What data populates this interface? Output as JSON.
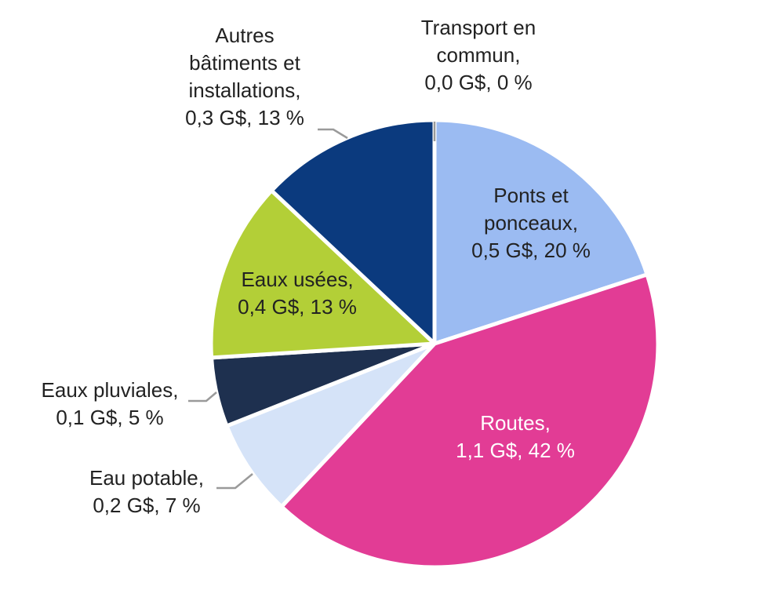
{
  "chart_data": {
    "type": "pie",
    "title": "",
    "start_angle_deg": 0,
    "direction": "clockwise",
    "slices": [
      {
        "name": "Transport en commun",
        "value": 0.0,
        "percent": 0,
        "color": "#9BBBF2",
        "label_lines": [
          "Transport en",
          "commun,",
          "0,0 G$, 0 %"
        ],
        "label_color": "#222222"
      },
      {
        "name": "Ponts et ponceaux",
        "value": 0.5,
        "percent": 20,
        "color": "#9BBBF2",
        "label_lines": [
          "Ponts et",
          "ponceaux,",
          "0,5 G$, 20 %"
        ],
        "label_color": "#222222"
      },
      {
        "name": "Routes",
        "value": 1.1,
        "percent": 42,
        "color": "#E23C95",
        "label_lines": [
          "Routes,",
          "1,1 G$, 42 %"
        ],
        "label_color": "#ffffff"
      },
      {
        "name": "Eau potable",
        "value": 0.2,
        "percent": 7,
        "color": "#D5E3F8",
        "label_lines": [
          "Eau potable,",
          "0,2 G$, 7 %"
        ],
        "label_color": "#222222"
      },
      {
        "name": "Eaux pluviales",
        "value": 0.1,
        "percent": 5,
        "color": "#1E304F",
        "label_lines": [
          "Eaux pluviales,",
          "0,1 G$, 5 %"
        ],
        "label_color": "#222222"
      },
      {
        "name": "Eaux usées",
        "value": 0.4,
        "percent": 13,
        "color": "#B3CF37",
        "label_lines": [
          "Eaux usées,",
          "0,4 G$, 13 %"
        ],
        "label_color": "#222222"
      },
      {
        "name": "Autres bâtiments et installations",
        "value": 0.3,
        "percent": 13,
        "color": "#0B3A7E",
        "label_lines": [
          "Autres",
          "bâtiments et",
          "installations,",
          "0,3 G$, 13 %"
        ],
        "label_color": "#222222"
      }
    ],
    "leader_line_color": "#9A9A9A"
  }
}
